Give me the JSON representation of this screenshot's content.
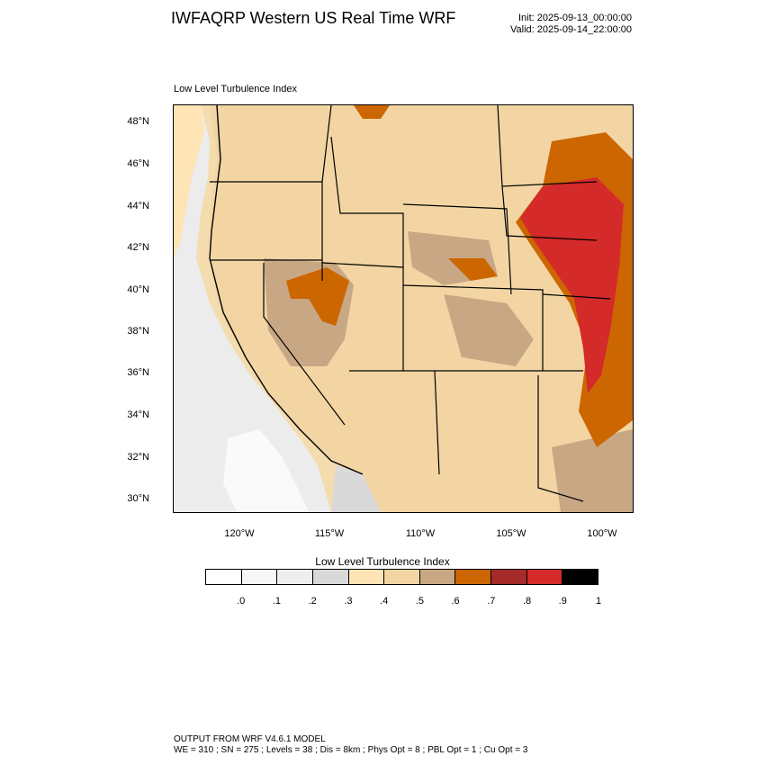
{
  "header": {
    "title": "IWFAQRP Western US Real Time WRF",
    "init": "Init: 2025-09-13_00:00:00",
    "valid": "Valid: 2025-09-14_22:00:00"
  },
  "map": {
    "subtitle": "Low Level Turbulence Index",
    "lat_labels": [
      "48°N",
      "46°N",
      "44°N",
      "42°N",
      "40°N",
      "38°N",
      "36°N",
      "34°N",
      "32°N",
      "30°N"
    ],
    "lon_labels": [
      "120°W",
      "115°W",
      "110°W",
      "105°W",
      "100°W"
    ]
  },
  "legend": {
    "title": "Low Level Turbulence Index",
    "labels": [
      ".0",
      ".1",
      ".2",
      ".3",
      ".4",
      ".5",
      ".6",
      ".7",
      ".8",
      ".9",
      "1"
    ],
    "colors": [
      "#ffffff",
      "#f7f7f7",
      "#eeeeee",
      "#d9d9d9",
      "#ffe4b5",
      "#f3d5a4",
      "#c8a784",
      "#cc6600",
      "#a52a2a",
      "#d42a2a",
      "#000000"
    ]
  },
  "footer": {
    "line1": "OUTPUT FROM WRF V4.6.1 MODEL",
    "line2": "WE = 310 ; SN = 275 ; Levels = 38 ; Dis = 8km ; Phys Opt = 8 ; PBL Opt = 1 ; Cu Opt = 3"
  }
}
